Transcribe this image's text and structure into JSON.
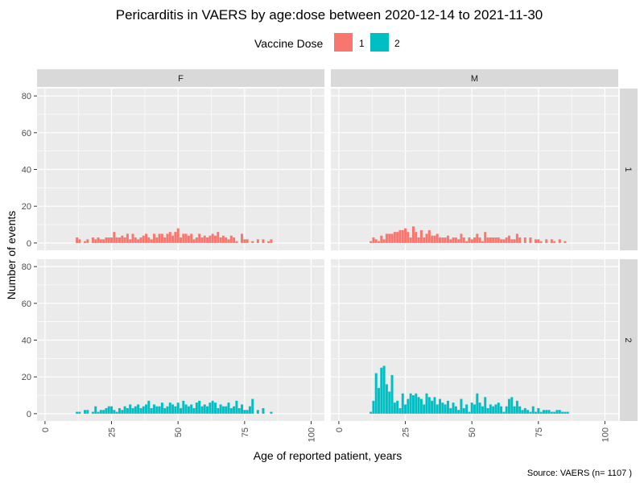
{
  "chart_data": {
    "type": "bar",
    "title": "Pericarditis in VAERS by age:dose between 2020-12-14 to 2021-11-30",
    "xlabel": "Age of reported patient, years",
    "ylabel": "Number of events",
    "caption": "Source: VAERS (n= 1107 )",
    "legend": {
      "title": "Vaccine Dose",
      "placement": "top",
      "entries": [
        {
          "label": "1",
          "color": "#F8766D"
        },
        {
          "label": "2",
          "color": "#00BFC4"
        }
      ]
    },
    "xlim": [
      -3,
      105
    ],
    "ylim": [
      -4,
      84
    ],
    "x_ticks": [
      0,
      25,
      50,
      75,
      100
    ],
    "x_tick_labels": [
      "0",
      "25",
      "50",
      "75",
      "100"
    ],
    "y_ticks": [
      0,
      20,
      40,
      60,
      80
    ],
    "y_tick_labels": [
      "0",
      "20",
      "40",
      "60",
      "80"
    ],
    "grid": true,
    "column_facets": [
      "F",
      "M"
    ],
    "row_facets": [
      "1",
      "2"
    ],
    "panels": [
      {
        "sex": "F",
        "dose": "1",
        "color": "#F8766D",
        "x": [
          12,
          13,
          15,
          16,
          18,
          19,
          20,
          21,
          22,
          23,
          24,
          25,
          26,
          27,
          28,
          29,
          30,
          31,
          32,
          33,
          34,
          35,
          36,
          37,
          38,
          39,
          40,
          41,
          42,
          43,
          44,
          45,
          46,
          47,
          48,
          49,
          50,
          51,
          52,
          53,
          54,
          55,
          56,
          57,
          58,
          59,
          60,
          61,
          62,
          63,
          64,
          65,
          66,
          67,
          68,
          69,
          70,
          71,
          72,
          74,
          75,
          76,
          78,
          80,
          82,
          84,
          85
        ],
        "y": [
          3,
          2,
          1,
          2,
          3,
          2,
          3,
          2,
          2,
          3,
          3,
          3,
          6,
          3,
          3,
          4,
          3,
          5,
          2,
          5,
          3,
          2,
          3,
          4,
          5,
          3,
          2,
          5,
          3,
          5,
          5,
          3,
          5,
          6,
          4,
          6,
          8,
          3,
          5,
          5,
          4,
          5,
          2,
          3,
          5,
          3,
          4,
          3,
          4,
          5,
          4,
          6,
          3,
          4,
          3,
          2,
          4,
          3,
          1,
          5,
          2,
          2,
          1,
          2,
          2,
          1,
          2
        ]
      },
      {
        "sex": "M",
        "dose": "1",
        "color": "#F8766D",
        "x": [
          12,
          13,
          14,
          15,
          16,
          17,
          18,
          19,
          20,
          21,
          22,
          23,
          24,
          25,
          26,
          27,
          28,
          29,
          30,
          31,
          32,
          33,
          34,
          35,
          36,
          37,
          38,
          39,
          40,
          41,
          42,
          43,
          44,
          45,
          46,
          47,
          48,
          49,
          50,
          51,
          52,
          53,
          54,
          55,
          56,
          57,
          58,
          59,
          60,
          61,
          62,
          63,
          64,
          65,
          66,
          67,
          68,
          70,
          72,
          74,
          75,
          76,
          78,
          80,
          81,
          83,
          85
        ],
        "y": [
          1,
          3,
          2,
          1,
          4,
          2,
          5,
          5,
          5,
          6,
          6,
          7,
          7,
          8,
          6,
          3,
          9,
          6,
          3,
          7,
          3,
          5,
          7,
          4,
          4,
          5,
          3,
          3,
          3,
          4,
          2,
          3,
          3,
          2,
          5,
          3,
          1,
          3,
          2,
          3,
          5,
          3,
          1,
          6,
          3,
          3,
          3,
          3,
          3,
          2,
          2,
          3,
          4,
          2,
          2,
          5,
          3,
          3,
          3,
          2,
          2,
          1,
          2,
          2,
          1,
          2,
          1
        ]
      },
      {
        "sex": "F",
        "dose": "2",
        "color": "#00BFC4",
        "x": [
          12,
          13,
          15,
          16,
          18,
          19,
          20,
          21,
          22,
          23,
          24,
          25,
          26,
          27,
          28,
          29,
          30,
          31,
          32,
          33,
          34,
          35,
          36,
          37,
          38,
          39,
          40,
          41,
          42,
          43,
          44,
          45,
          46,
          47,
          48,
          49,
          50,
          51,
          52,
          53,
          54,
          55,
          56,
          57,
          58,
          59,
          60,
          61,
          62,
          63,
          64,
          65,
          66,
          67,
          68,
          69,
          70,
          71,
          72,
          73,
          74,
          75,
          76,
          77,
          78,
          80,
          82,
          85
        ],
        "y": [
          1,
          1,
          2,
          2,
          1,
          4,
          1,
          2,
          2,
          3,
          4,
          4,
          2,
          1,
          3,
          2,
          4,
          3,
          5,
          3,
          4,
          5,
          3,
          4,
          5,
          7,
          3,
          5,
          4,
          4,
          6,
          3,
          4,
          6,
          5,
          4,
          6,
          3,
          7,
          5,
          4,
          5,
          3,
          6,
          7,
          4,
          5,
          4,
          6,
          7,
          6,
          3,
          5,
          4,
          4,
          6,
          3,
          4,
          7,
          3,
          5,
          2,
          2,
          4,
          8,
          2,
          3,
          1
        ]
      },
      {
        "sex": "M",
        "dose": "2",
        "color": "#00BFC4",
        "x": [
          12,
          13,
          14,
          15,
          16,
          17,
          18,
          19,
          20,
          21,
          22,
          23,
          24,
          25,
          26,
          27,
          28,
          29,
          30,
          31,
          32,
          33,
          34,
          35,
          36,
          37,
          38,
          39,
          40,
          41,
          42,
          43,
          44,
          45,
          46,
          47,
          48,
          49,
          50,
          51,
          52,
          53,
          54,
          55,
          56,
          57,
          58,
          59,
          60,
          61,
          62,
          63,
          64,
          65,
          66,
          67,
          68,
          69,
          70,
          71,
          72,
          73,
          74,
          75,
          76,
          77,
          78,
          79,
          80,
          81,
          82,
          83,
          84,
          85,
          86
        ],
        "y": [
          1,
          7,
          22,
          14,
          25,
          26,
          16,
          12,
          21,
          6,
          7,
          3,
          11,
          5,
          8,
          11,
          10,
          11,
          9,
          8,
          5,
          11,
          9,
          7,
          9,
          5,
          8,
          6,
          5,
          7,
          3,
          6,
          4,
          2,
          8,
          3,
          5,
          1,
          6,
          5,
          11,
          6,
          4,
          9,
          3,
          5,
          4,
          5,
          6,
          4,
          1,
          4,
          8,
          9,
          4,
          7,
          4,
          2,
          3,
          2,
          1,
          4,
          1,
          3,
          1,
          2,
          2,
          2,
          1,
          1,
          2,
          2,
          1,
          1,
          1
        ]
      }
    ]
  }
}
